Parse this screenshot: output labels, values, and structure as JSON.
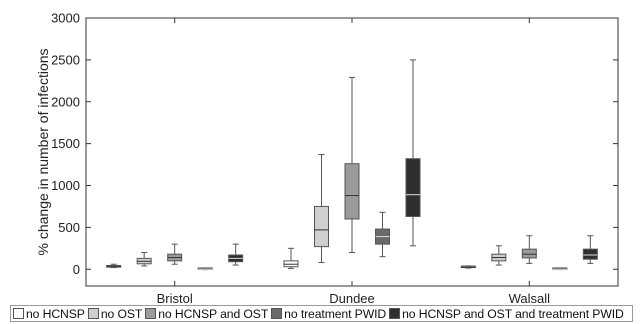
{
  "chart_data": {
    "type": "box",
    "ylabel": "% change in number of infections",
    "xlabel": "",
    "ylim": [
      -200,
      3000
    ],
    "yticks": [
      0,
      500,
      1000,
      1500,
      2000,
      2500,
      3000
    ],
    "categories": [
      "Bristol",
      "Dundee",
      "Walsall"
    ],
    "series": [
      {
        "name": "no HCNSP",
        "color": "#ffffff",
        "boxes": [
          {
            "whisker_low": 20,
            "q1": 25,
            "median": 35,
            "q3": 45,
            "whisker_high": 60
          },
          {
            "whisker_low": 10,
            "q1": 30,
            "median": 60,
            "q3": 100,
            "whisker_high": 250
          },
          {
            "whisker_low": 15,
            "q1": 20,
            "median": 25,
            "q3": 32,
            "whisker_high": 40
          }
        ]
      },
      {
        "name": "no OST",
        "color": "#cfcfcf",
        "boxes": [
          {
            "whisker_low": 40,
            "q1": 65,
            "median": 95,
            "q3": 130,
            "whisker_high": 200
          },
          {
            "whisker_low": 80,
            "q1": 270,
            "median": 470,
            "q3": 750,
            "whisker_high": 1370
          },
          {
            "whisker_low": 50,
            "q1": 100,
            "median": 140,
            "q3": 180,
            "whisker_high": 280
          }
        ]
      },
      {
        "name": "no HCNSP and OST",
        "color": "#9b9b9b",
        "boxes": [
          {
            "whisker_low": 60,
            "q1": 100,
            "median": 140,
            "q3": 180,
            "whisker_high": 300
          },
          {
            "whisker_low": 200,
            "q1": 600,
            "median": 880,
            "q3": 1260,
            "whisker_high": 2290
          },
          {
            "whisker_low": 70,
            "q1": 135,
            "median": 180,
            "q3": 240,
            "whisker_high": 400
          }
        ]
      },
      {
        "name": "no treatment PWID",
        "color": "#6a6a6a",
        "boxes": [
          {
            "whisker_low": -5,
            "q1": -2,
            "median": 0,
            "q3": 2,
            "whisker_high": 5
          },
          {
            "whisker_low": 150,
            "q1": 300,
            "median": 390,
            "q3": 480,
            "whisker_high": 680
          },
          {
            "whisker_low": -4,
            "q1": -2,
            "median": 0,
            "q3": 2,
            "whisker_high": 4
          }
        ]
      },
      {
        "name": "no HCNSP and OST and treatment PWID",
        "color": "#2f2f2f",
        "boxes": [
          {
            "whisker_low": 50,
            "q1": 90,
            "median": 130,
            "q3": 170,
            "whisker_high": 300
          },
          {
            "whisker_low": 280,
            "q1": 630,
            "median": 890,
            "q3": 1320,
            "whisker_high": 2500
          },
          {
            "whisker_low": 70,
            "q1": 120,
            "median": 170,
            "q3": 240,
            "whisker_high": 400
          }
        ]
      }
    ],
    "legend_position": "bottom"
  }
}
